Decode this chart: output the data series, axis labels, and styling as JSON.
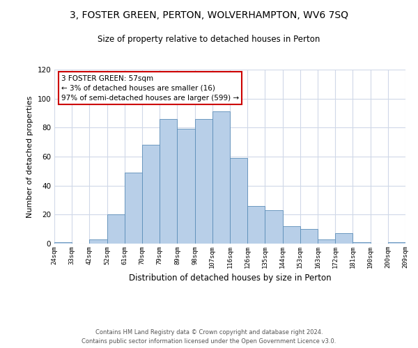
{
  "title": "3, FOSTER GREEN, PERTON, WOLVERHAMPTON, WV6 7SQ",
  "subtitle": "Size of property relative to detached houses in Perton",
  "xlabel": "Distribution of detached houses by size in Perton",
  "ylabel": "Number of detached properties",
  "bin_labels": [
    "24sqm",
    "33sqm",
    "42sqm",
    "52sqm",
    "61sqm",
    "70sqm",
    "79sqm",
    "89sqm",
    "98sqm",
    "107sqm",
    "116sqm",
    "126sqm",
    "135sqm",
    "144sqm",
    "153sqm",
    "163sqm",
    "172sqm",
    "181sqm",
    "190sqm",
    "200sqm",
    "209sqm"
  ],
  "bar_values": [
    1,
    0,
    3,
    20,
    49,
    68,
    86,
    79,
    86,
    91,
    59,
    26,
    23,
    12,
    10,
    3,
    7,
    1,
    0,
    1
  ],
  "bar_color": "#b8cfe8",
  "bar_edge_color": "#5b8db8",
  "annotation_box_text": "3 FOSTER GREEN: 57sqm\n← 3% of detached houses are smaller (16)\n97% of semi-detached houses are larger (599) →",
  "annotation_box_edge_color": "#cc0000",
  "annotation_box_bg": "#ffffff",
  "ylim": [
    0,
    120
  ],
  "yticks": [
    0,
    20,
    40,
    60,
    80,
    100,
    120
  ],
  "footer_line1": "Contains HM Land Registry data © Crown copyright and database right 2024.",
  "footer_line2": "Contains public sector information licensed under the Open Government Licence v3.0.",
  "background_color": "#ffffff",
  "grid_color": "#d0d8e8"
}
